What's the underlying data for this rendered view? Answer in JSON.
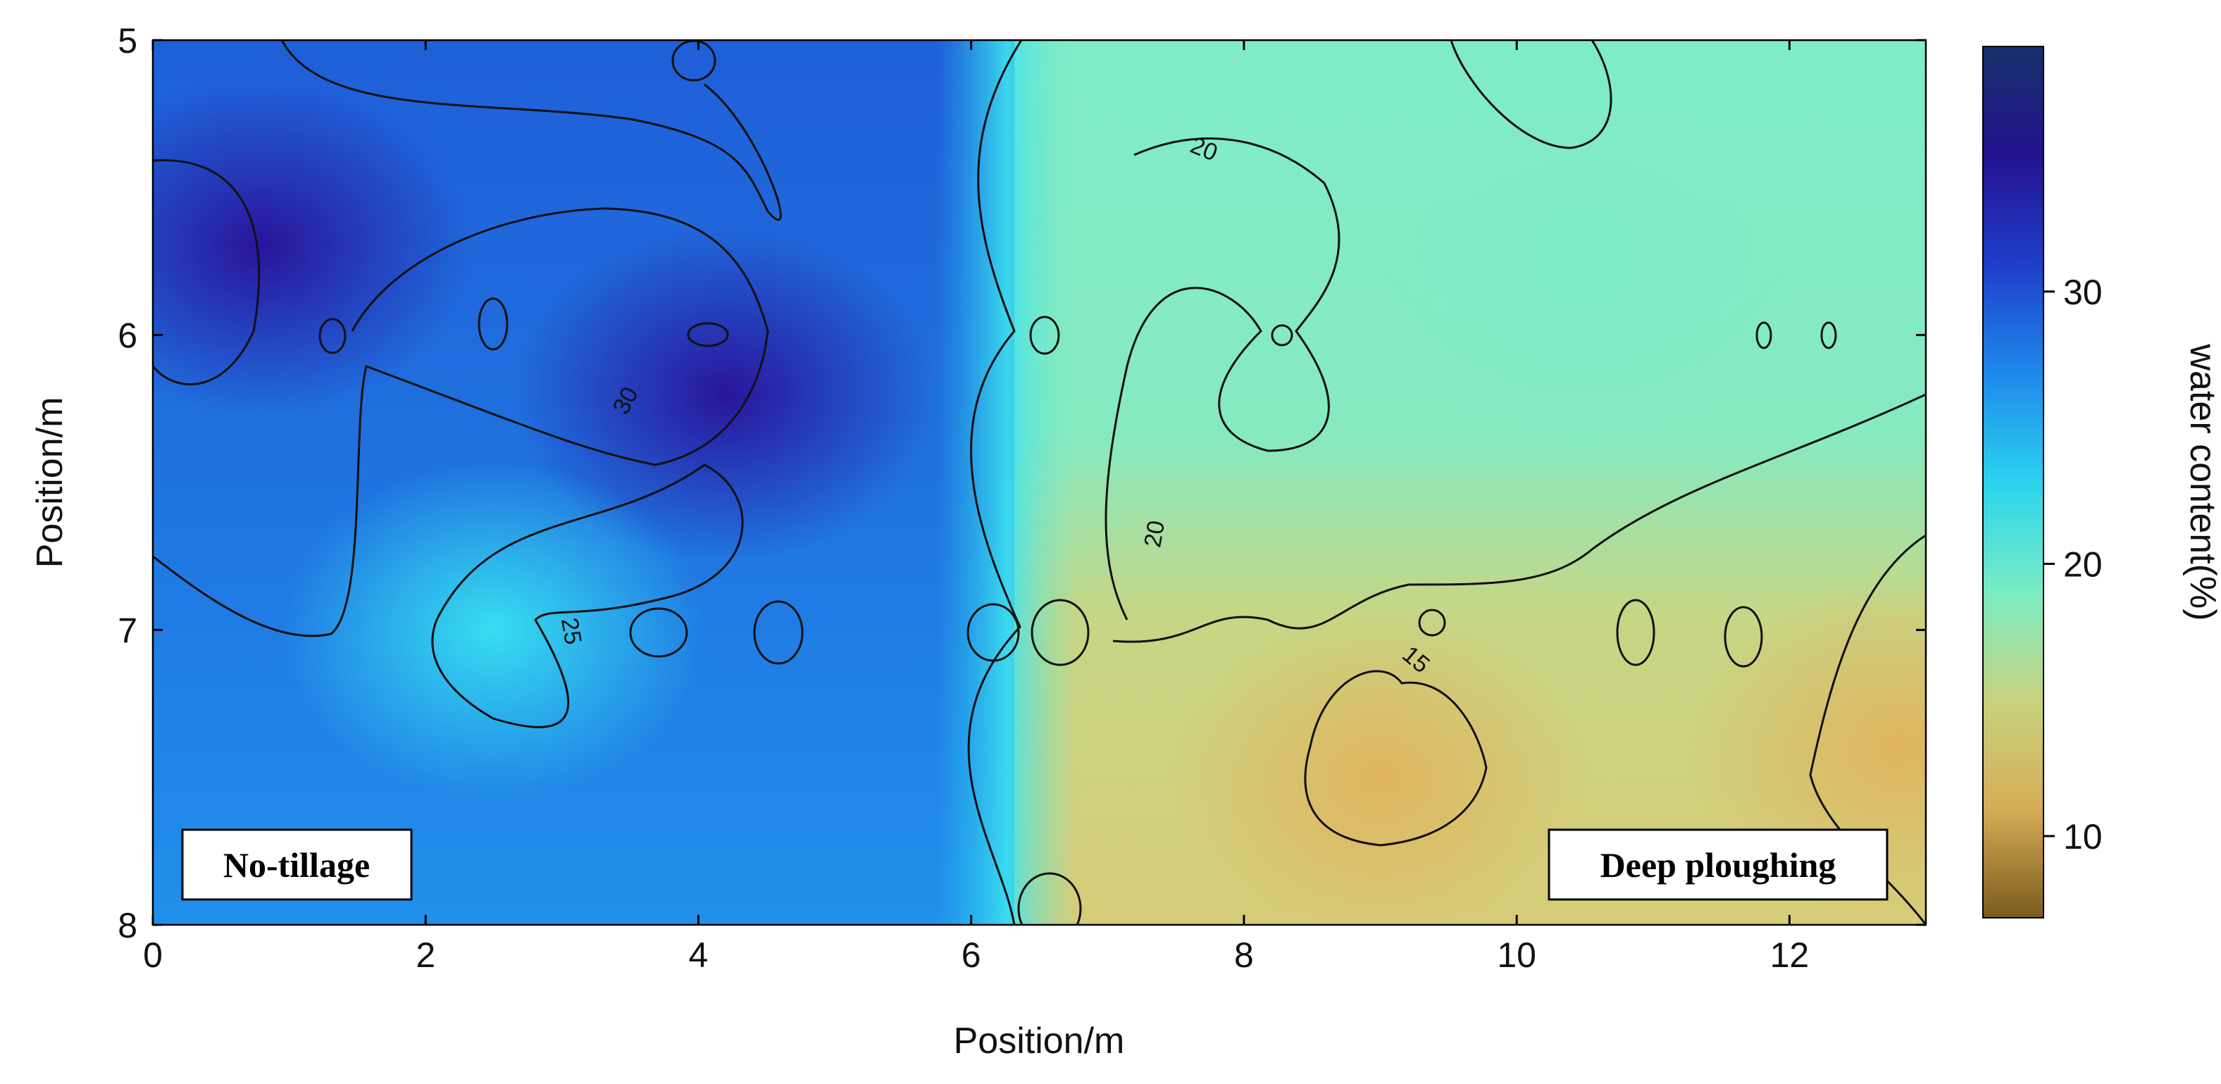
{
  "chart_data": {
    "type": "heatmap",
    "title": "",
    "xlabel": "Position/m",
    "ylabel": "Position/m",
    "xlim": [
      0,
      13
    ],
    "ylim": [
      5,
      8
    ],
    "y_inverted": true,
    "x_ticks": [
      "0",
      "2",
      "4",
      "6",
      "8",
      "10",
      "12"
    ],
    "y_ticks": [
      "5",
      "6",
      "7",
      "8"
    ],
    "colorbar": {
      "label": "water content(%)",
      "range": [
        7,
        39
      ],
      "ticks": [
        "10",
        "20",
        "30"
      ],
      "stops": [
        "#7a5a1e",
        "#d6ad56",
        "#c7d27e",
        "#78ecc4",
        "#2bd3ee",
        "#1f88ea",
        "#1f3ec9",
        "#24128f",
        "#17306a"
      ]
    },
    "contour_levels": [
      15,
      20,
      25,
      30
    ],
    "contour_labels": [
      "20",
      "30",
      "20",
      "25",
      "15"
    ],
    "annotations": [
      "No-tillage",
      "Deep ploughing"
    ],
    "regions": [
      {
        "name": "No-tillage",
        "x_range": [
          0,
          6.3
        ],
        "approx_water_content": [
          24,
          36
        ]
      },
      {
        "name": "Deep ploughing",
        "x_range": [
          6.3,
          13
        ],
        "approx_water_content": [
          12,
          22
        ]
      }
    ],
    "features": [
      {
        "x": 0.8,
        "y": 5.7,
        "value": 35
      },
      {
        "x": 4.2,
        "y": 6.2,
        "value": 36
      },
      {
        "x": 2.5,
        "y": 7.0,
        "value": 23
      },
      {
        "x": 9.0,
        "y": 7.5,
        "value": 13
      },
      {
        "x": 12.8,
        "y": 7.4,
        "value": 12
      },
      {
        "x": 10.5,
        "y": 5.8,
        "value": 20
      }
    ]
  }
}
